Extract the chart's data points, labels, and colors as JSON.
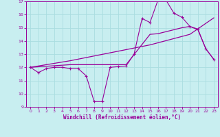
{
  "xlabel": "Windchill (Refroidissement éolien,°C)",
  "xlim": [
    -0.5,
    23.5
  ],
  "ylim": [
    9,
    17
  ],
  "yticks": [
    9,
    10,
    11,
    12,
    13,
    14,
    15,
    16,
    17
  ],
  "xticks": [
    0,
    1,
    2,
    3,
    4,
    5,
    6,
    7,
    8,
    9,
    10,
    11,
    12,
    13,
    14,
    15,
    16,
    17,
    18,
    19,
    20,
    21,
    22,
    23
  ],
  "bg_color": "#c8eef0",
  "grid_color": "#aadde0",
  "line_color": "#990099",
  "line1_x": [
    0,
    1,
    2,
    3,
    4,
    5,
    6,
    7,
    8,
    9,
    10,
    11,
    12,
    13,
    14,
    15,
    16,
    17,
    18,
    19,
    20,
    21,
    22,
    23
  ],
  "line1_y": [
    12.0,
    11.6,
    11.9,
    12.0,
    12.0,
    11.9,
    11.9,
    11.35,
    9.4,
    9.4,
    12.0,
    12.05,
    12.1,
    13.0,
    15.7,
    15.4,
    17.1,
    17.1,
    16.1,
    15.8,
    15.1,
    14.9,
    13.4,
    12.6
  ],
  "line2_x": [
    0,
    5,
    10,
    15,
    20,
    23
  ],
  "line2_y": [
    12.0,
    12.5,
    13.1,
    13.7,
    14.5,
    15.75
  ],
  "line3_x": [
    0,
    5,
    10,
    12,
    15,
    16,
    19,
    20,
    21,
    22,
    23
  ],
  "line3_y": [
    12.0,
    12.2,
    12.2,
    12.2,
    14.5,
    14.55,
    15.0,
    15.1,
    14.85,
    13.4,
    12.6
  ]
}
